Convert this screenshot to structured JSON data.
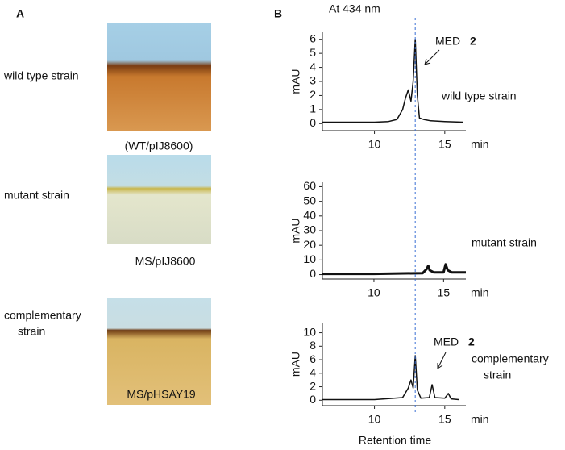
{
  "panel_a": {
    "label": "A",
    "rows": [
      {
        "strain": "wild type strain",
        "caption": "(WT/pIJ8600)"
      },
      {
        "strain": "mutant strain",
        "caption": "MS/pIJ8600"
      },
      {
        "strain": [
          "complementary",
          "strain"
        ],
        "caption": "MS/pHSAY19"
      }
    ]
  },
  "panel_b": {
    "label": "B",
    "title": "At 434 nm",
    "reference_line": {
      "x": 12.9,
      "color": "#3b6fd4"
    }
  },
  "chart_data": [
    {
      "type": "line",
      "ylabel": "mAU",
      "xunit": "min",
      "peak_label": "MED",
      "peak_number": "2",
      "sample_label": "wild type strain",
      "x": [
        6.3,
        8,
        10,
        11,
        11.6,
        12.0,
        12.2,
        12.4,
        12.6,
        12.75,
        12.9,
        13.05,
        13.2,
        13.5,
        14,
        15,
        16.3
      ],
      "values": [
        0.1,
        0.1,
        0.1,
        0.15,
        0.3,
        1.0,
        1.8,
        2.4,
        1.6,
        3.0,
        6.0,
        2.0,
        0.4,
        0.3,
        0.2,
        0.15,
        0.1
      ],
      "color": "#111111",
      "xlim": [
        6.3,
        16.5
      ],
      "xticks": [
        10,
        15
      ],
      "ylim": [
        -0.5,
        6.5
      ],
      "yticks": [
        0,
        1,
        2,
        3,
        4,
        5,
        6
      ]
    },
    {
      "type": "line",
      "ylabel": "mAU",
      "xunit": "min",
      "sample_label": "mutant strain",
      "x": [
        6.3,
        10,
        13.5,
        13.8,
        13.9,
        14.0,
        14.3,
        15.0,
        15.15,
        15.3,
        15.6,
        16.6
      ],
      "values": [
        0.5,
        0.5,
        1,
        4,
        6,
        3,
        1.5,
        1.5,
        7,
        3,
        1.5,
        1.5
      ],
      "color": "#111111",
      "xlim": [
        6.3,
        16.6
      ],
      "xticks": [
        10,
        15
      ],
      "ylim": [
        -3,
        63
      ],
      "yticks": [
        0,
        10,
        20,
        30,
        40,
        50,
        60
      ]
    },
    {
      "type": "line",
      "ylabel": "mAU",
      "xunit": "min",
      "xlabel": "Retention time",
      "peak_label": "MED",
      "peak_number": "2",
      "sample_label": [
        "complementary",
        "strain"
      ],
      "x": [
        6.3,
        10,
        12,
        12.4,
        12.6,
        12.75,
        12.9,
        13.05,
        13.3,
        13.9,
        14.1,
        14.3,
        15.0,
        15.25,
        15.45,
        16
      ],
      "values": [
        0.1,
        0.1,
        0.4,
        1.8,
        3.0,
        1.8,
        6.6,
        1.5,
        0.3,
        0.4,
        2.3,
        0.4,
        0.3,
        1.0,
        0.2,
        0.1
      ],
      "color": "#111111",
      "xlim": [
        6.3,
        16.5
      ],
      "xticks": [
        10,
        15
      ],
      "ylim": [
        -0.8,
        11.5
      ],
      "yticks": [
        0,
        2,
        4,
        6,
        8,
        10
      ]
    }
  ]
}
